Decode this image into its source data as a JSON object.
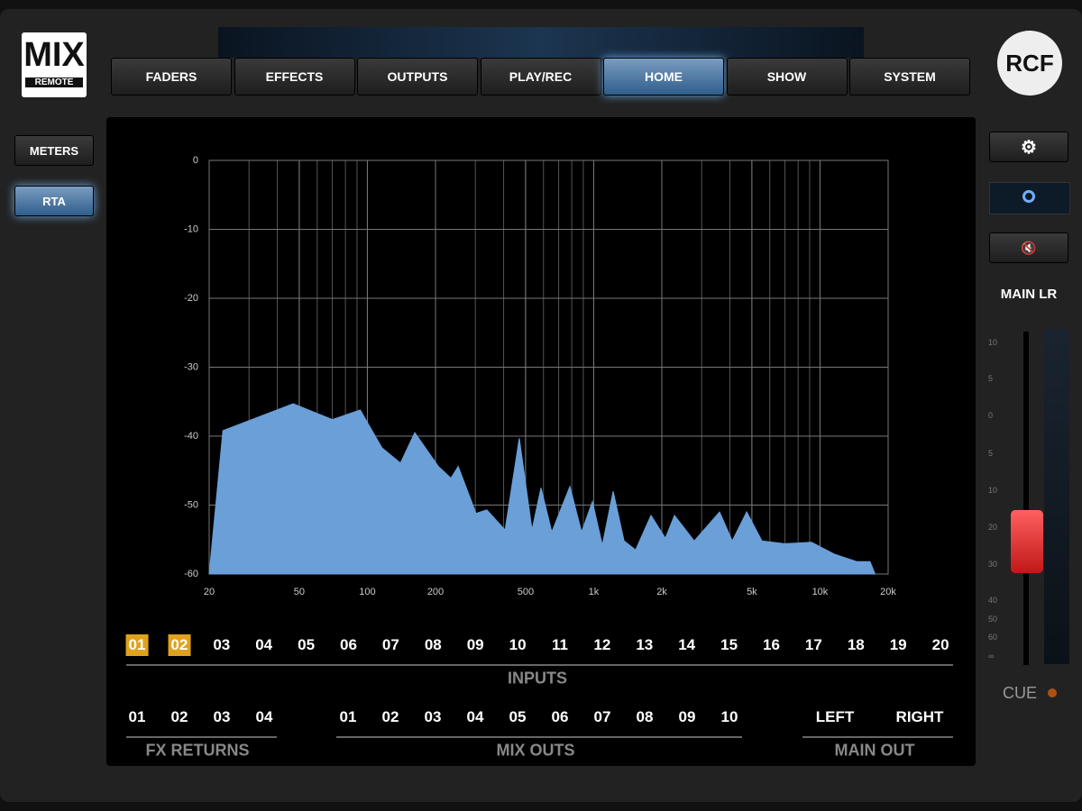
{
  "logo": {
    "title": "MIX",
    "subtitle": "REMOTE"
  },
  "brand": "RCF",
  "tabs": [
    {
      "label": "FADERS"
    },
    {
      "label": "EFFECTS"
    },
    {
      "label": "OUTPUTS"
    },
    {
      "label": "PLAY/REC"
    },
    {
      "label": "HOME",
      "active": true
    },
    {
      "label": "SHOW"
    },
    {
      "label": "SYSTEM"
    }
  ],
  "side_buttons": [
    {
      "label": "METERS"
    },
    {
      "label": "RTA",
      "active": true
    }
  ],
  "chart_data": {
    "type": "area",
    "color": "#6a9fd8",
    "log_x": true,
    "grid": true,
    "x": [
      20,
      23,
      47,
      70,
      93,
      116,
      140,
      162,
      206,
      234,
      252,
      302,
      337,
      406,
      469,
      534,
      585,
      653,
      785,
      884,
      987,
      1092,
      1219,
      1362,
      1532,
      1791,
      2074,
      2275,
      2781,
      3599,
      4094,
      4743,
      5538,
      6966,
      9166,
      11540,
      14520,
      16640,
      17500
    ],
    "values": [
      -60,
      -39.2,
      -35.3,
      -37.6,
      -36.2,
      -41.7,
      -43.9,
      -39.5,
      -44.4,
      -46.1,
      -44.4,
      -51.2,
      -50.7,
      -53.6,
      -40.3,
      -53.6,
      -47.5,
      -53.9,
      -47.3,
      -53.9,
      -49.5,
      -55.8,
      -48,
      -55.2,
      -56.5,
      -51.5,
      -54.8,
      -51.5,
      -55.2,
      -51,
      -55.2,
      -51,
      -55.2,
      -55.6,
      -55.4,
      -57.1,
      -58.2,
      -58.2,
      -60
    ],
    "xlim": [
      20,
      20000
    ],
    "ylim": [
      -60,
      0
    ],
    "xticks": [
      20,
      50,
      100,
      200,
      500,
      {
        "value": 1000,
        "label": "1k"
      },
      {
        "value": 2000,
        "label": "2k"
      },
      {
        "value": 5000,
        "label": "5k"
      },
      {
        "value": 10000,
        "label": "10k"
      },
      {
        "value": 20000,
        "label": "20k"
      }
    ],
    "yticks": [
      0,
      -10,
      -20,
      -30,
      -40,
      -50,
      -60
    ]
  },
  "inputs": {
    "label": "INPUTS",
    "channels": [
      {
        "label": "01",
        "selected": true
      },
      {
        "label": "02",
        "selected": true
      },
      {
        "label": "03"
      },
      {
        "label": "04"
      },
      {
        "label": "05"
      },
      {
        "label": "06"
      },
      {
        "label": "07"
      },
      {
        "label": "08"
      },
      {
        "label": "09"
      },
      {
        "label": "10"
      },
      {
        "label": "11"
      },
      {
        "label": "12"
      },
      {
        "label": "13"
      },
      {
        "label": "14"
      },
      {
        "label": "15"
      },
      {
        "label": "16"
      },
      {
        "label": "17"
      },
      {
        "label": "18"
      },
      {
        "label": "19"
      },
      {
        "label": "20"
      }
    ]
  },
  "fx_returns": {
    "label": "FX RETURNS",
    "channels": [
      "01",
      "02",
      "03",
      "04"
    ]
  },
  "mix_outs": {
    "label": "MIX OUTS",
    "channels": [
      "01",
      "02",
      "03",
      "04",
      "05",
      "06",
      "07",
      "08",
      "09",
      "10"
    ]
  },
  "main_out": {
    "label": "MAIN OUT",
    "channels": [
      "LEFT",
      "RIGHT"
    ]
  },
  "main_bus": "MAIN LR",
  "fader_scale": [
    "10",
    "5",
    "0",
    "5",
    "10",
    "20",
    "30",
    "40",
    "50",
    "60",
    "∞"
  ],
  "cue": "CUE"
}
